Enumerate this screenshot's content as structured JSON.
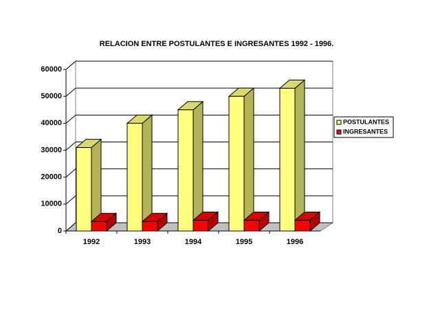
{
  "chart_data": {
    "type": "bar3d",
    "title": "RELACION ENTRE POSTULANTES E INGRESANTES 1992 - 1996.",
    "categories": [
      "1992",
      "1993",
      "1994",
      "1995",
      "1996"
    ],
    "series": [
      {
        "name": "POSTULANTES",
        "color": "#ffff80",
        "values": [
          31000,
          40000,
          45000,
          50000,
          53000
        ]
      },
      {
        "name": "INGRESANTES",
        "color": "#ff0000",
        "values": [
          3500,
          3500,
          4000,
          4000,
          4000
        ]
      }
    ],
    "ylim": [
      0,
      60000
    ],
    "yticks": [
      0,
      10000,
      20000,
      30000,
      40000,
      50000,
      60000
    ],
    "grid": true,
    "legend": "right"
  }
}
